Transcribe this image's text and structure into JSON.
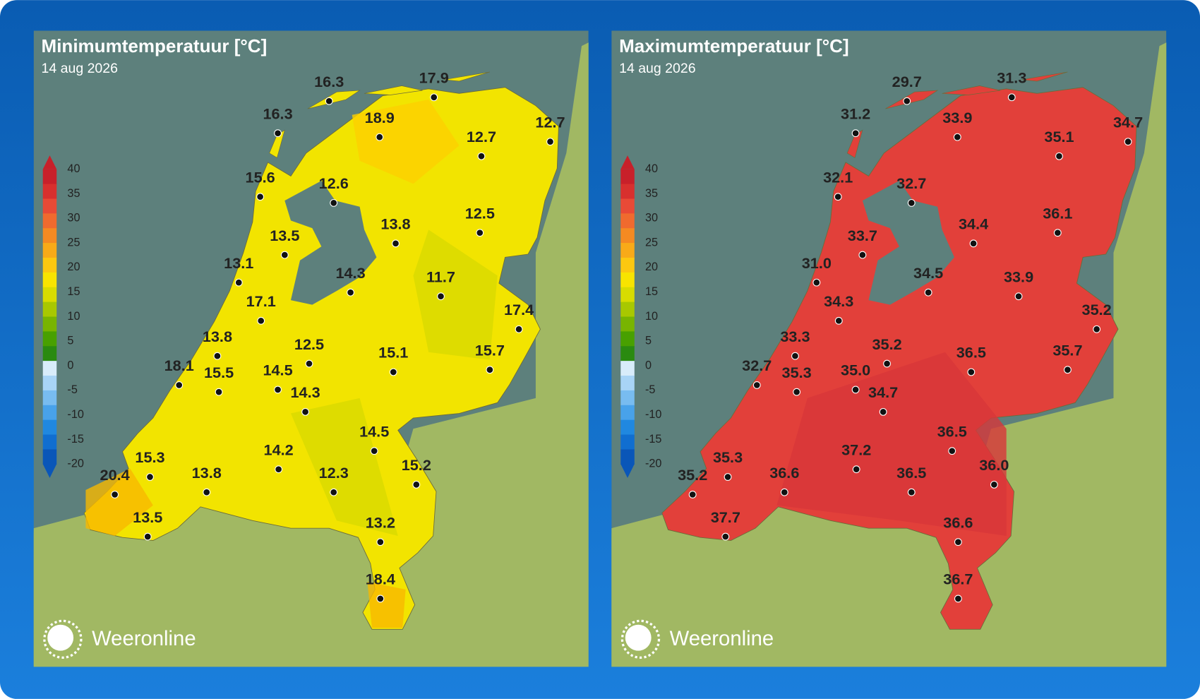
{
  "panels": [
    {
      "title": "Minimumtemperatuur [°C]",
      "date": "14 aug 2026",
      "legend_ticks": [
        40,
        35,
        30,
        25,
        20,
        15,
        10,
        5,
        0,
        -5,
        -10,
        -15,
        -20
      ],
      "stations": [
        "16.3",
        "17.9",
        "16.3",
        "18.9",
        "12.7",
        "12.7",
        "15.6",
        "12.6",
        "13.5",
        "13.8",
        "12.5",
        "13.1",
        "14.3",
        "11.7",
        "17.1",
        "17.4",
        "13.8",
        "12.5",
        "15.1",
        "15.7",
        "18.1",
        "15.5",
        "14.5",
        "14.3",
        "14.5",
        "14.2",
        "15.3",
        "13.8",
        "12.3",
        "15.2",
        "20.4",
        "13.5",
        "13.2",
        "18.4"
      ],
      "logo": "Weeronline"
    },
    {
      "title": "Maximumtemperatuur [°C]",
      "date": "14 aug 2026",
      "legend_ticks": [
        40,
        35,
        30,
        25,
        20,
        15,
        10,
        5,
        0,
        -5,
        -10,
        -15,
        -20
      ],
      "stations": [
        "29.7",
        "31.3",
        "31.2",
        "33.9",
        "35.1",
        "34.7",
        "32.1",
        "32.7",
        "33.7",
        "34.4",
        "36.1",
        "31.0",
        "34.5",
        "33.9",
        "34.3",
        "35.2",
        "33.3",
        "35.2",
        "36.5",
        "35.7",
        "32.7",
        "35.3",
        "35.0",
        "34.7",
        "36.5",
        "37.2",
        "35.3",
        "36.6",
        "36.5",
        "36.0",
        "35.2",
        "37.7",
        "36.6",
        "36.7"
      ],
      "logo": "Weeronline"
    }
  ]
}
